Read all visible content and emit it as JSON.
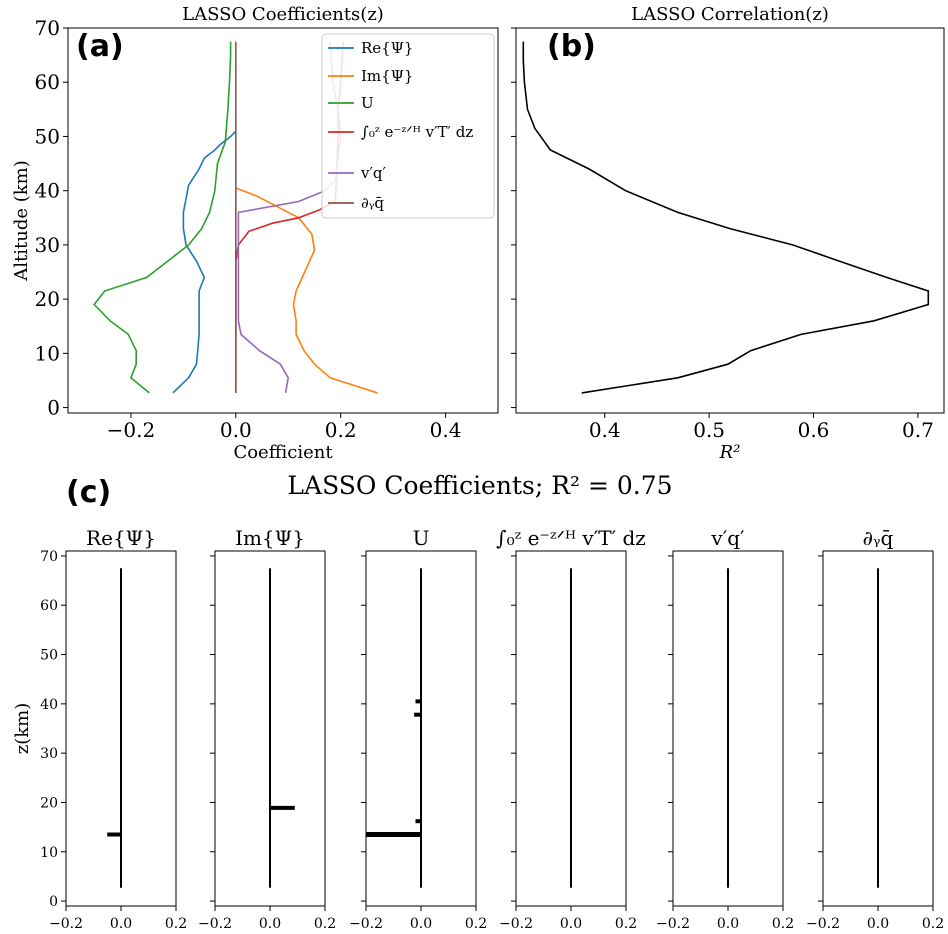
{
  "panel_labels": {
    "a": "(a)",
    "b": "(b)",
    "c": "(c)"
  },
  "chart_data": [
    {
      "type": "line",
      "panel": "a",
      "title": "LASSO Coefficients(z)",
      "xlabel": "Coefficient",
      "ylabel": "Altitude (km)",
      "xlim": [
        -0.32,
        0.5
      ],
      "ylim": [
        -1,
        70
      ],
      "xticks": [
        -0.2,
        0.0,
        0.2,
        0.4
      ],
      "xtick_labels": [
        "−0.2",
        "0.0",
        "0.2",
        "0.4"
      ],
      "yticks": [
        0,
        10,
        20,
        30,
        40,
        50,
        60,
        70
      ],
      "ytick_labels": [
        "0",
        "10",
        "20",
        "30",
        "40",
        "50",
        "60",
        "70"
      ],
      "legend_placement": "top-right",
      "series": [
        {
          "name": "Re{Ψ}",
          "color": "#1f77b4",
          "x": [
            -0.12,
            -0.09,
            -0.075,
            -0.07,
            -0.07,
            -0.07,
            -0.06,
            -0.075,
            -0.095,
            -0.1,
            -0.1,
            -0.09,
            -0.07,
            -0.06,
            -0.04,
            -0.03,
            -0.01,
            0.0
          ],
          "y": [
            2.7,
            5.5,
            8,
            13.5,
            17,
            21.5,
            24,
            27,
            30,
            33,
            36,
            41,
            44,
            46,
            47.5,
            48.5,
            50,
            51
          ]
        },
        {
          "name": "Im{Ψ}",
          "color": "#ff7f0e",
          "x": [
            0.27,
            0.18,
            0.15,
            0.13,
            0.115,
            0.115,
            0.11,
            0.115,
            0.15,
            0.145,
            0.12,
            0.08,
            0.04,
            0.0
          ],
          "y": [
            2.7,
            5.5,
            8,
            10.5,
            13.5,
            16,
            19,
            21.5,
            29,
            32,
            35,
            37,
            39,
            40.5
          ]
        },
        {
          "name": "U",
          "color": "#2ca02c",
          "x": [
            -0.165,
            -0.2,
            -0.19,
            -0.19,
            -0.205,
            -0.24,
            -0.27,
            -0.25,
            -0.17,
            -0.13,
            -0.09,
            -0.065,
            -0.05,
            -0.04,
            -0.035,
            -0.02,
            -0.015,
            -0.012,
            -0.01,
            -0.01
          ],
          "y": [
            2.7,
            5.5,
            8,
            10.5,
            13.5,
            16,
            19,
            21.5,
            24,
            27,
            30,
            33,
            36,
            40,
            45,
            49,
            55,
            60,
            65,
            67.5
          ]
        },
        {
          "name": "∫₀ᶻ e⁻ᶻᐟᴴ v′T′ dz",
          "color": "#d62728",
          "x": [
            0.0,
            0.0,
            0.0,
            0.0,
            0.0,
            0.0,
            0.0,
            0.0,
            0.0,
            0.0,
            0.005,
            0.025,
            0.07,
            0.12,
            0.16,
            0.19,
            0.195,
            0.195,
            0.2,
            0.205
          ],
          "y": [
            2.7,
            5.5,
            8,
            10.5,
            13.5,
            16,
            19,
            21.5,
            24,
            27,
            30,
            32.5,
            34,
            35,
            36.5,
            38,
            50,
            55,
            60,
            67.5
          ]
        },
        {
          "name": "v′q′",
          "color": "#9467bd",
          "x": [
            0.095,
            0.1,
            0.085,
            0.045,
            0.01,
            0.005,
            0.005,
            0.005,
            0.005,
            0.005,
            0.005,
            0.005,
            0.005,
            0.12,
            0.17,
            0.19,
            0.2,
            0.195,
            0.185,
            0.18
          ],
          "y": [
            2.7,
            5.5,
            8,
            10.5,
            13.5,
            16,
            19,
            21.5,
            24,
            27,
            30,
            33,
            36,
            38,
            40,
            42,
            50,
            55,
            60,
            67.5
          ]
        },
        {
          "name": "∂ᵧq̄",
          "color": "#8c564b",
          "x": [
            0.0,
            0.0,
            0.0,
            0.0,
            0.0,
            0.0,
            0.0,
            0.0,
            0.0,
            0.0,
            0.0,
            0.0,
            0.0,
            0.0,
            0.0,
            0.0,
            0.0,
            0.0,
            0.0,
            0.0
          ],
          "y": [
            2.7,
            5.5,
            8,
            10.5,
            13.5,
            16,
            19,
            21.5,
            24,
            27,
            30,
            33,
            36,
            40,
            45,
            50,
            55,
            60,
            65,
            67.5
          ]
        }
      ]
    },
    {
      "type": "line",
      "panel": "b",
      "title": "LASSO Correlation(z)",
      "xlabel": "R²",
      "xlim": [
        0.315,
        0.725
      ],
      "ylim": [
        -1,
        70
      ],
      "xticks": [
        0.4,
        0.5,
        0.6,
        0.7
      ],
      "xtick_labels": [
        "0.4",
        "0.5",
        "0.6",
        "0.7"
      ],
      "series": [
        {
          "color": "#000000",
          "x": [
            0.378,
            0.47,
            0.518,
            0.54,
            0.588,
            0.658,
            0.71,
            0.71,
            0.67,
            0.625,
            0.58,
            0.52,
            0.47,
            0.42,
            0.385,
            0.348,
            0.333,
            0.326,
            0.323,
            0.322,
            0.322
          ],
          "y": [
            2.7,
            5.5,
            8,
            10.5,
            13.5,
            16,
            19,
            21.5,
            24,
            27,
            30,
            33,
            36,
            40,
            44,
            47.5,
            51.5,
            55,
            60,
            64,
            67.5
          ]
        }
      ]
    },
    {
      "type": "bar",
      "panel": "c",
      "title": "LASSO Coefficients; R² = 0.75",
      "ylabel": "z(km)",
      "xlim": [
        -0.2,
        0.2
      ],
      "ylim": [
        -1,
        71
      ],
      "xticks": [
        -0.2,
        0.0,
        0.2
      ],
      "xtick_labels": [
        "−0.2",
        "0.0",
        "0.2"
      ],
      "yticks": [
        0,
        10,
        20,
        30,
        40,
        50,
        60,
        70
      ],
      "ytick_labels": [
        "0",
        "10",
        "20",
        "30",
        "40",
        "50",
        "60",
        "70"
      ],
      "baseline": {
        "x": 0.0,
        "y_from": 2.7,
        "y_to": 67.5
      },
      "subplots": [
        {
          "title": "Re{Ψ}",
          "bars": [
            {
              "y": 13.5,
              "value": -0.05
            }
          ]
        },
        {
          "title": "Im{Ψ}",
          "bars": [
            {
              "y": 18.9,
              "value": 0.09
            },
            {
              "y": 16.2,
              "value": -0.002
            }
          ]
        },
        {
          "title": "U",
          "bars": [
            {
              "y": 40.5,
              "value": -0.02
            },
            {
              "y": 37.8,
              "value": -0.025
            },
            {
              "y": 16.2,
              "value": -0.02
            },
            {
              "y": 13.5,
              "value": -0.2
            }
          ]
        },
        {
          "title": "∫₀ᶻ e⁻ᶻᐟᴴ v′T′ dz",
          "bars": []
        },
        {
          "title": "v′q′",
          "bars": []
        },
        {
          "title": "∂ᵧq̄",
          "bars": []
        }
      ]
    }
  ]
}
